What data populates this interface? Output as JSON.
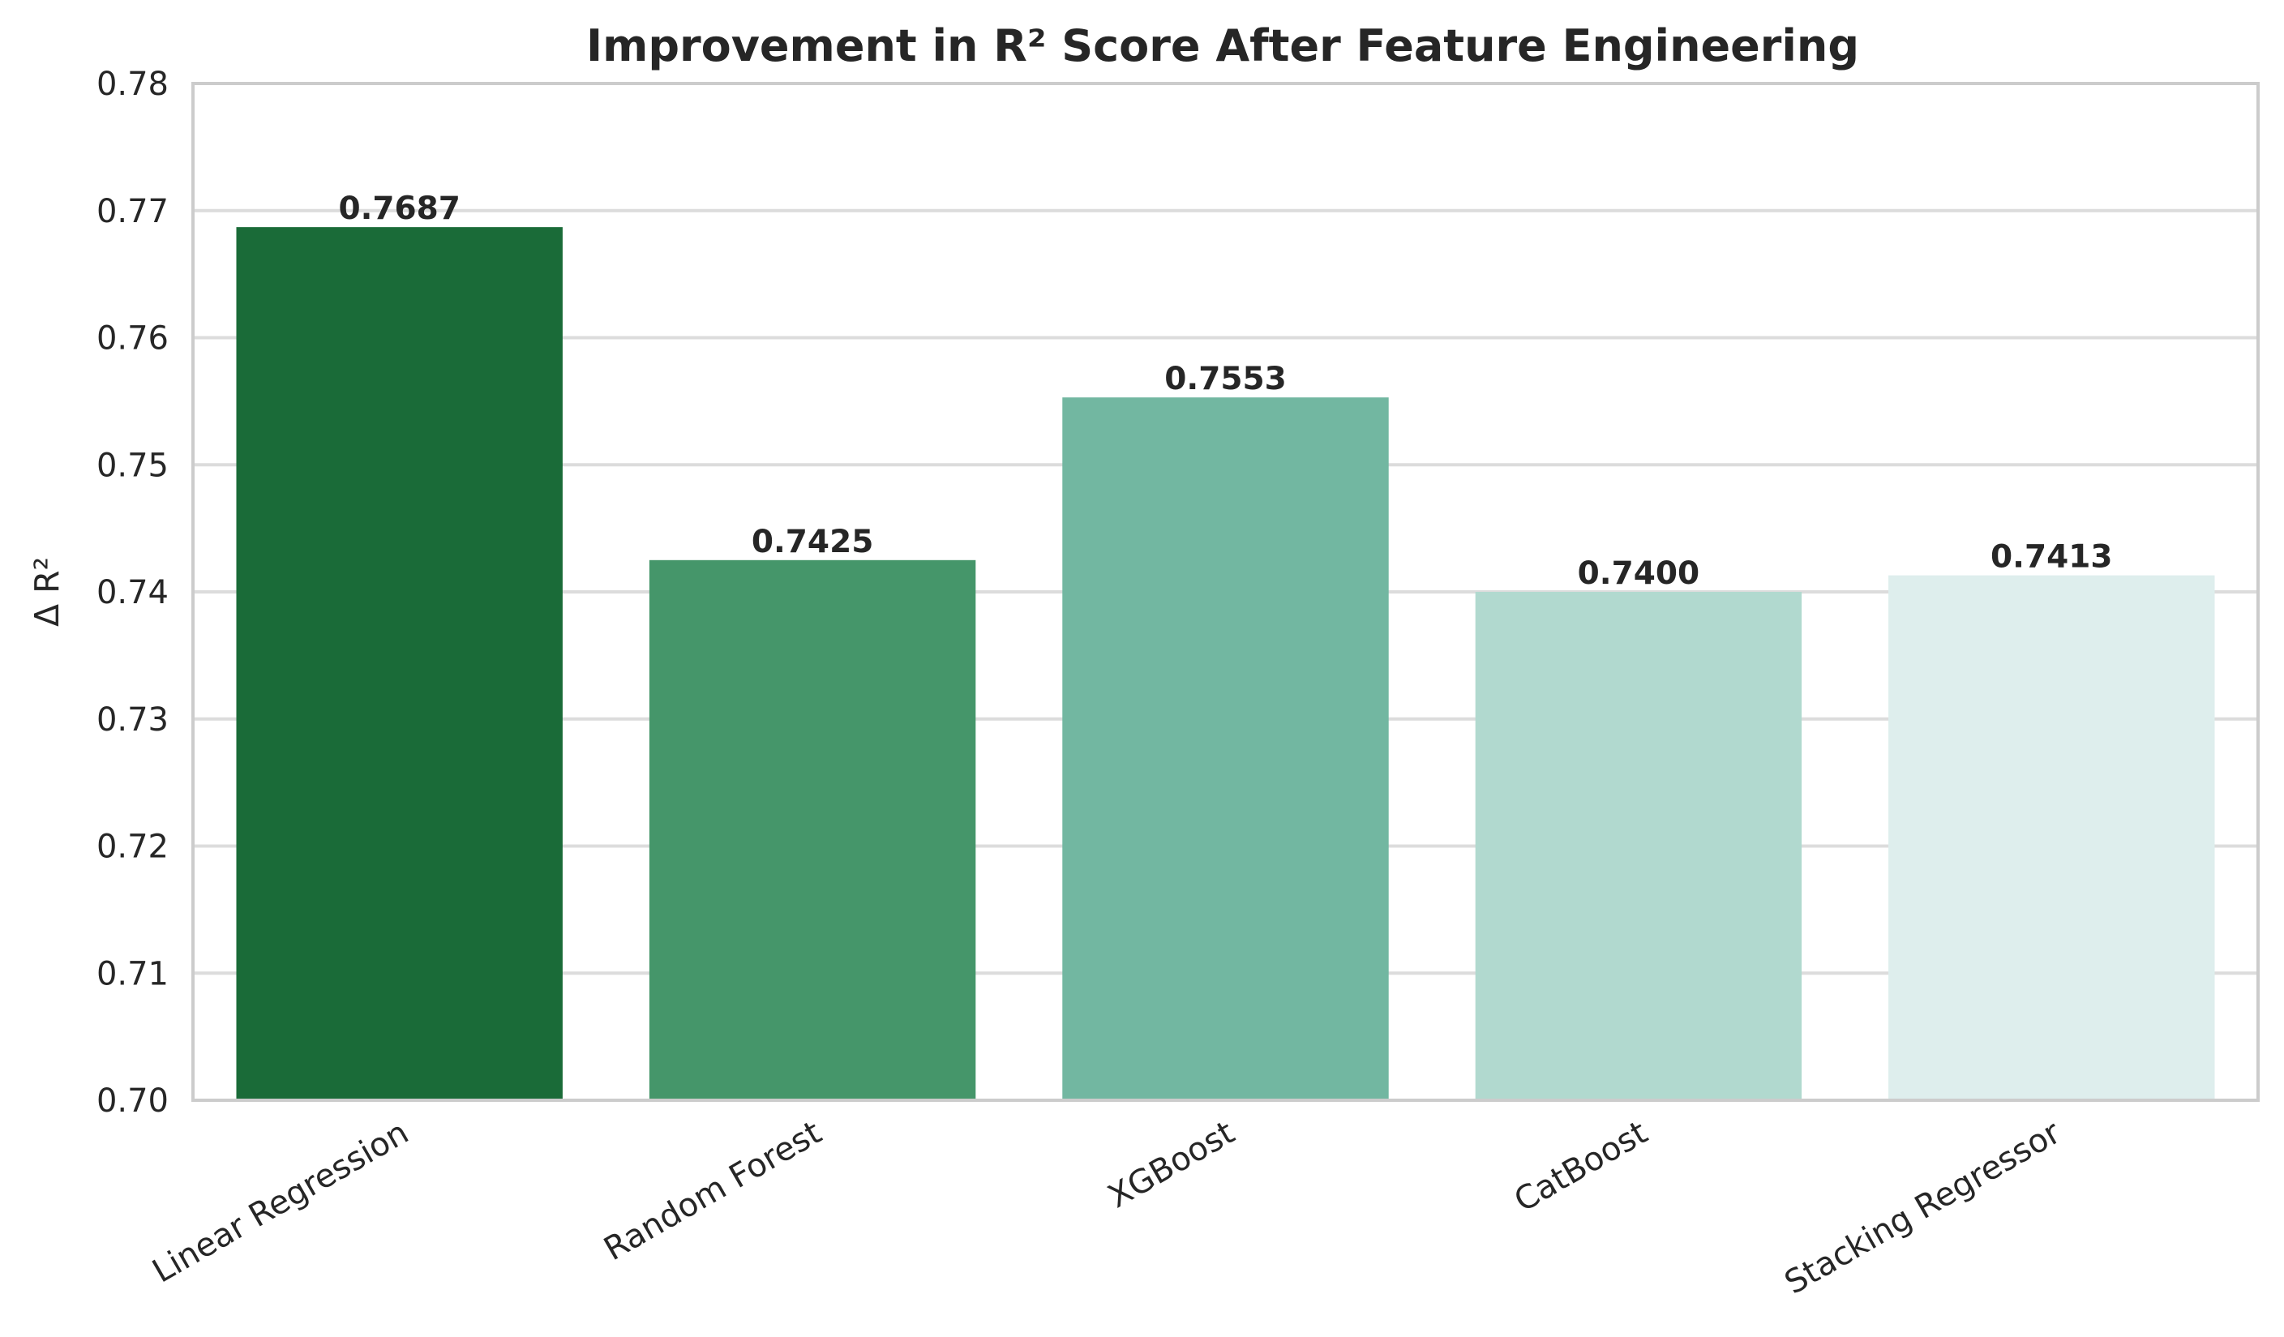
{
  "chart_data": {
    "type": "bar",
    "title": "Improvement in R² Score After Feature Engineering",
    "xlabel": "",
    "ylabel": "Δ R²",
    "categories": [
      "Linear Regression",
      "Random Forest",
      "XGBoost",
      "CatBoost",
      "Stacking Regressor"
    ],
    "values": [
      0.7687,
      0.7425,
      0.7553,
      0.74,
      0.7413
    ],
    "value_labels": [
      "0.7687",
      "0.7425",
      "0.7553",
      "0.7400",
      "0.7413"
    ],
    "colors": [
      "#1a6b38",
      "#45966a",
      "#72b7a1",
      "#b1d9cf",
      "#deeeed"
    ],
    "ylim": [
      0.7,
      0.78
    ],
    "yticks": [
      "0.70",
      "0.71",
      "0.72",
      "0.73",
      "0.74",
      "0.75",
      "0.76",
      "0.77",
      "0.78"
    ],
    "grid": true,
    "legend": "none"
  }
}
